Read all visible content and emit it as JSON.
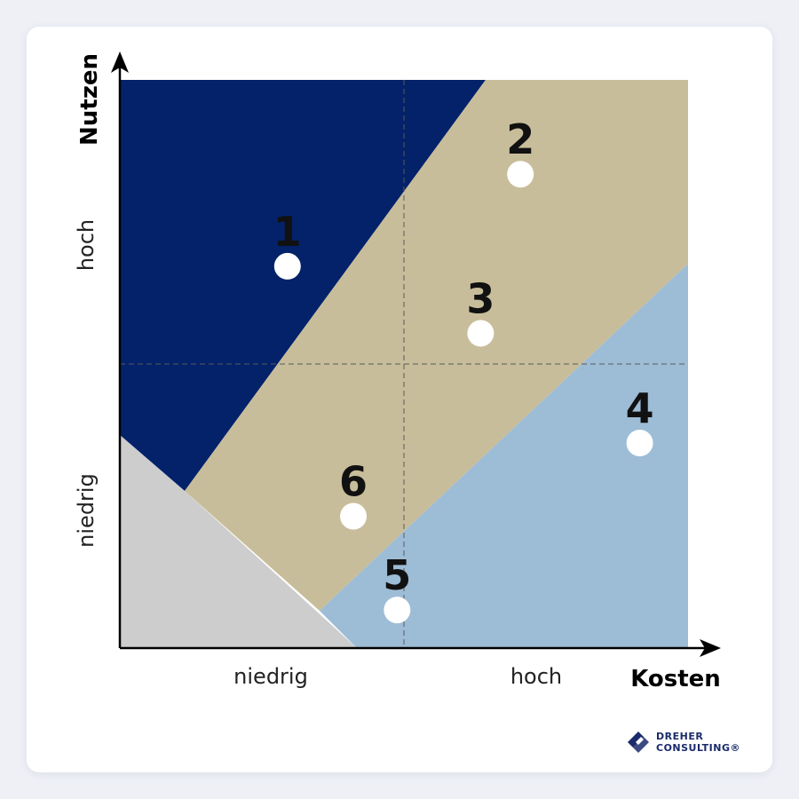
{
  "axes": {
    "x_title": "Kosten",
    "y_title": "Nutzen",
    "x_levels": [
      "niedrig",
      "hoch"
    ],
    "y_levels": [
      "niedrig",
      "hoch"
    ]
  },
  "colors": {
    "zone_high_value": "#03226a",
    "zone_middle": "#c8bd9a",
    "zone_high_cost": "#9dbcd6",
    "zone_low": "#cdcdcd",
    "marker": "#ffffff",
    "axis": "#000000",
    "logo": "#1a2b6b"
  },
  "markers": [
    {
      "label": "1",
      "cost": 0.295,
      "benefit": 0.672
    },
    {
      "label": "2",
      "cost": 0.705,
      "benefit": 0.834
    },
    {
      "label": "3",
      "cost": 0.635,
      "benefit": 0.554
    },
    {
      "label": "4",
      "cost": 0.915,
      "benefit": 0.361
    },
    {
      "label": "5",
      "cost": 0.488,
      "benefit": 0.067
    },
    {
      "label": "6",
      "cost": 0.411,
      "benefit": 0.232
    }
  ],
  "logo": {
    "line1": "DREHER",
    "line2": "CONSULTING®",
    "icon": "dreher-diamond-logo-icon"
  }
}
